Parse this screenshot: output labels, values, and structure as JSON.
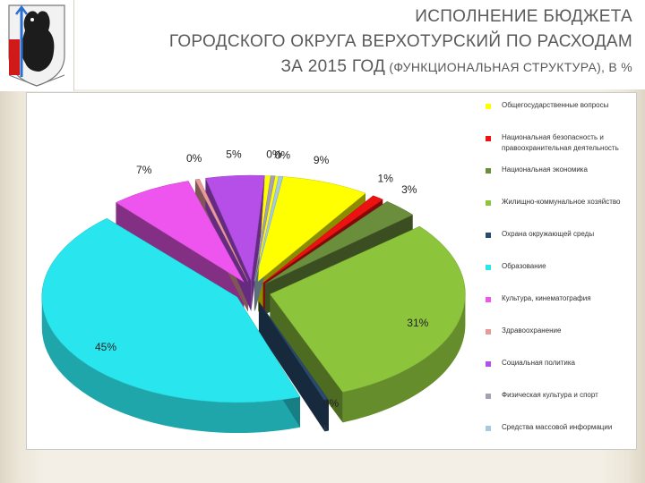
{
  "header": {
    "title_line1": "ИСПОЛНЕНИЕ БЮДЖЕТА",
    "title_line2": "ГОРОДСКОГО ОКРУГА ВЕРХОТУРСКИЙ ПО РАСХОДАМ",
    "title_line3_main": "ЗА 2015 ГОД",
    "title_line3_sub": " (ФУНКЦИОНАЛЬНАЯ СТРУКТУРА), В %"
  },
  "chart_data": {
    "type": "pie",
    "style": "3d-exploded",
    "legend_position": "right",
    "categories": [
      "Общегосударственные вопросы",
      "Национальная безопасность и правоохранительная деятельность",
      "Национальная экономика",
      "Жилищно-коммунальное хозяйство",
      "Охрана окружающей среды",
      "Образование",
      "Культура, кинематография",
      "Здравоохранение",
      "Социальная политика",
      "Физическая культура и спорт",
      "Средства массовой информации"
    ],
    "values": [
      9,
      1,
      3,
      31,
      0,
      45,
      7,
      0,
      5,
      0,
      0
    ],
    "labels": [
      "9%",
      "1%",
      "3%",
      "31%",
      "0%",
      "45%",
      "7%",
      "0%",
      "5%",
      "0%",
      "0%"
    ],
    "colors": [
      "#ffff00",
      "#ee1111",
      "#6b8e3c",
      "#8cc43c",
      "#2a4a6e",
      "#29e6ee",
      "#ee55ee",
      "#e89a9a",
      "#b64ee8",
      "#a6a0b4",
      "#a4cbe0"
    ]
  }
}
